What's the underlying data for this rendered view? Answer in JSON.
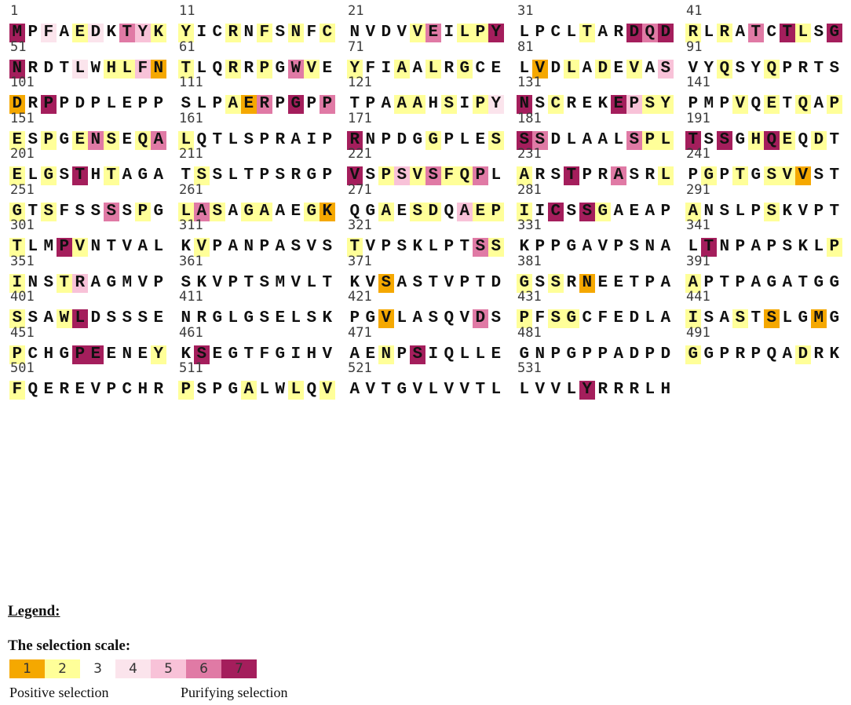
{
  "sequence": {
    "numbers": [
      "1",
      "11",
      "21",
      "31",
      "41",
      "51",
      "61",
      "71",
      "81",
      "91",
      "101",
      "111",
      "121",
      "131",
      "141",
      "151",
      "161",
      "171",
      "181",
      "191",
      "201",
      "211",
      "221",
      "231",
      "241",
      "251",
      "261",
      "271",
      "281",
      "291",
      "301",
      "311",
      "321",
      "331",
      "341",
      "351",
      "361",
      "371",
      "381",
      "391",
      "401",
      "411",
      "421",
      "431",
      "441",
      "451",
      "461",
      "471",
      "481",
      "491",
      "501",
      "511",
      "521",
      "531"
    ],
    "blocks": [
      "MPFAEDKTYK",
      "YICRNFSNFC",
      "NVDVVEILPY",
      "LPCLTARDQD",
      "RLRATCTLSG",
      "NRDTLWHLFN",
      "TLQRRPGWVE",
      "YFIAALRGCE",
      "LVDLADEVAS",
      "VYQSYQPRTS",
      "DRPPDPLEPP",
      "SLPAERPGPP",
      "TPAAAHSIPY",
      "NSCREKEPSY",
      "PMPVQETQAP",
      "ESPGENSEQA",
      "LQTLSPRAIP",
      "RNPDGGPLES",
      "SSDLAALSPL",
      "TSSGHQEQDT",
      "ELGSTHTAGA",
      "TSSLTPSRGP",
      "VSPSVSFQPL",
      "ARSTPRASRL",
      "PGPTGSVVST",
      "GTSFSSSSPG",
      "LASAGAAEGK",
      "QGAESDQAEP",
      "IICSSGAEAP",
      "ANSLPSKVPT",
      "TLMPVNTVAL",
      "KVPANPASVS",
      "TVPSKLPTSS",
      "KPPGAVPSNA",
      "LTNPAPSKLP",
      "INSTRAGMVP",
      "SKVPTSMVLT",
      "KVSASTVPTD",
      "GSSRNEETPA",
      "APTPAGATGG",
      "SSAWLDSSSE",
      "NRGLGSELSK",
      "PGVLASQVDS",
      "PFSGCFEDLA",
      "ISASTSLGMG",
      "PCHGPEENEY",
      "KSEGTFGIHV",
      "AENPSIQLLE",
      "GNPGPPADPD",
      "GGPRPQADRK",
      "FQEREVPCHR",
      "PSPGALWLQV",
      "AVTGVLVVTL",
      "LVVLYRRRLH"
    ],
    "scores": [
      "7343243652",
      "2332323232",
      "3333263227",
      "3333233767",
      "2323637237",
      "7333432251",
      "2332323623",
      "2332323233",
      "3132323235",
      "3323323333",
      "1373333333",
      "3332163736",
      "3332232324",
      "7323337522",
      "3332323232",
      "2323262326",
      "2333333333",
      "7333323332",
      "7633333622",
      "7373272323",
      "2323732333",
      "3233333333",
      "7325262263",
      "2337336332",
      "3232322133",
      "2323336323",
      "2623223321",
      "3323223522",
      "2373723333",
      "2333323333",
      "2337233333",
      "3233333333",
      "2333333362",
      "3333333333",
      "3733333332",
      "2332533333",
      "3333333333",
      "3313333333",
      "2323133333",
      "2333333333",
      "2332733333",
      "3333333333",
      "3313333363",
      "2322333333",
      "2332313313",
      "2333773332",
      "3733333333",
      "3323733333",
      "3333333333",
      "2333333233",
      "2333333333",
      "2333233232",
      "3333333333",
      "3333733333"
    ]
  },
  "legend": {
    "title": "Legend:",
    "scale_title": "The selection scale:",
    "scale_labels": [
      "1",
      "2",
      "3",
      "4",
      "5",
      "6",
      "7"
    ],
    "scale_colors": [
      "#f5a800",
      "#ffff99",
      "#ffffff",
      "#fbe4ec",
      "#f8c2d8",
      "#e07aa5",
      "#a41e5c"
    ],
    "positive_label": "Positive selection",
    "purifying_label": "Purifying selection"
  }
}
